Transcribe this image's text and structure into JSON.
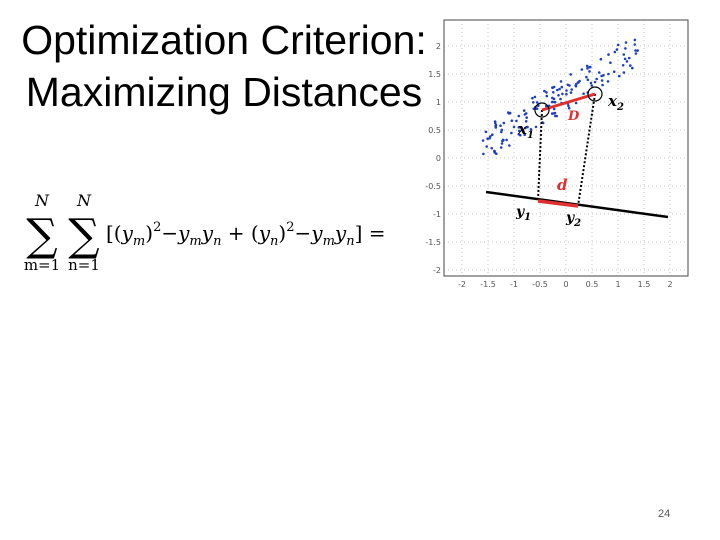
{
  "slide": {
    "title_line1": "Optimization Criterion:",
    "title_line2": "Maximizing Distances",
    "page_number": "24"
  },
  "formula": {
    "sum_upper": "N",
    "sum1_lower": "m=1",
    "sum2_lower": "n=1",
    "body": "[(y",
    "sub_m": "m",
    "sub_n": "n",
    "trail": "] ="
  },
  "figure": {
    "y_ticks": [
      "2",
      "1.5",
      "1",
      "0.5",
      "0",
      "-0.5",
      "-1",
      "-1.5",
      "-2"
    ],
    "x_ticks": [
      "-2",
      "-1.5",
      "-1",
      "-0.5",
      "0",
      "0.5",
      "1",
      "1.5",
      "2"
    ],
    "labels": {
      "x1": "x",
      "x1_sub": "1",
      "x2": "x",
      "x2_sub": "2",
      "y1": "y",
      "y1_sub": "1",
      "y2": "y",
      "y2_sub": "2",
      "D": "D",
      "d": "d"
    },
    "colors": {
      "points": "#1f3fbf",
      "highlight": "#e03030",
      "axis_line": "#000000",
      "grid": "#888888"
    }
  }
}
